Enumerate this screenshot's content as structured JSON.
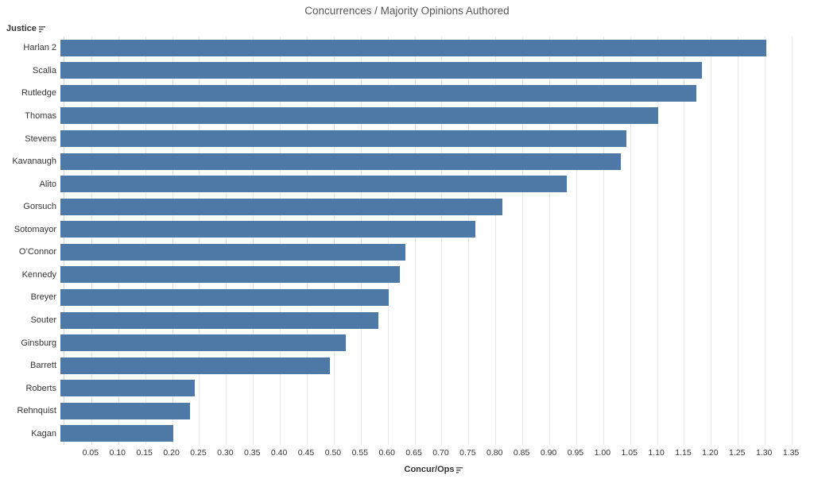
{
  "title": "Concurrences / Majority Opinions Authored",
  "y_axis": {
    "label": "Justice",
    "icon": "sort-descending-icon"
  },
  "x_axis": {
    "label": "Concur/Ops",
    "icon": "sort-descending-icon",
    "tick_values": [
      0.05,
      0.1,
      0.15,
      0.2,
      0.25,
      0.3,
      0.35,
      0.4,
      0.45,
      0.5,
      0.55,
      0.6,
      0.65,
      0.7,
      0.75,
      0.8,
      0.85,
      0.9,
      0.95,
      1.0,
      1.05,
      1.1,
      1.15,
      1.2,
      1.25,
      1.3,
      1.35
    ]
  },
  "colors": {
    "bar": "#4e79a7",
    "gridline": "#e8e8e8",
    "axis_line": "#d4d4d4",
    "title_text": "#555555",
    "label_text": "#333333"
  },
  "chart_data": {
    "type": "bar",
    "orientation": "horizontal",
    "title": "Concurrences / Majority Opinions Authored",
    "xlabel": "Concur/Ops",
    "ylabel": "Justice",
    "xlim": [
      0,
      1.375
    ],
    "grid": "vertical",
    "legend": "none",
    "categories": [
      "Harlan 2",
      "Scalia",
      "Rutledge",
      "Thomas",
      "Stevens",
      "Kavanaugh",
      "Alito",
      "Gorsuch",
      "Sotomayor",
      "O’Connor",
      "Kennedy",
      "Breyer",
      "Souter",
      "Ginsburg",
      "Barrett",
      "Roberts",
      "Rehnquist",
      "Kagan"
    ],
    "values": [
      1.31,
      1.19,
      1.18,
      1.11,
      1.05,
      1.04,
      0.94,
      0.82,
      0.77,
      0.64,
      0.63,
      0.61,
      0.59,
      0.53,
      0.5,
      0.25,
      0.24,
      0.21
    ]
  }
}
